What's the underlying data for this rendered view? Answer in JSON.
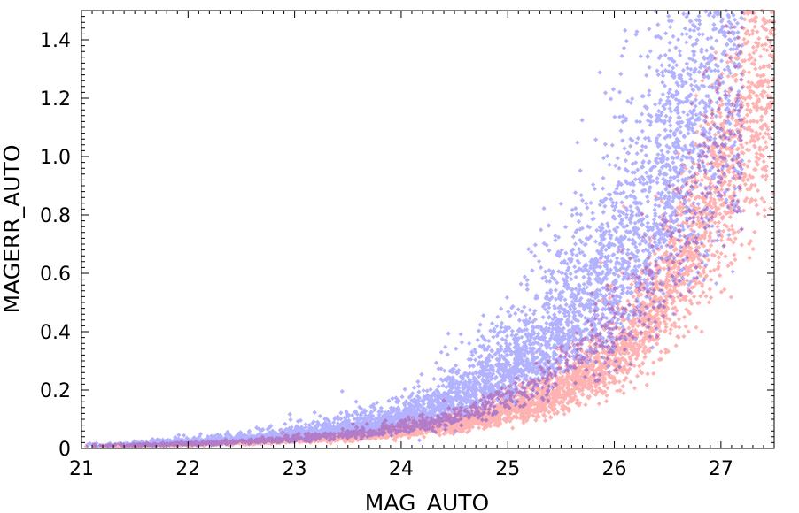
{
  "chart_data": {
    "type": "scatter",
    "title": "",
    "xlabel": "MAG_AUTO",
    "ylabel": "MAGERR_AUTO",
    "xlim": [
      21,
      27.5
    ],
    "ylim": [
      0,
      1.5
    ],
    "x_ticks": [
      "21",
      "22",
      "23",
      "24",
      "25",
      "26",
      "27"
    ],
    "y_ticks": [
      "0",
      "0.2",
      "0.4",
      "0.6",
      "0.8",
      "1.0",
      "1.2",
      "1.4"
    ],
    "grid": false,
    "legend": "none",
    "series": [
      {
        "color": "#0000ff",
        "opacity": 0.3,
        "marker": "diamond",
        "trend": "magerr ≈ 0.04·exp(0.86·(mag−23)), wide scatter, extends to ~1.5 by mag 27",
        "x_range": [
          21,
          27.2
        ],
        "points": [
          [
            21.0,
            0.01
          ],
          [
            21.5,
            0.014
          ],
          [
            22.0,
            0.02
          ],
          [
            22.5,
            0.03
          ],
          [
            23.0,
            0.045
          ],
          [
            23.5,
            0.07
          ],
          [
            24.0,
            0.1
          ],
          [
            24.5,
            0.16
          ],
          [
            25.0,
            0.26
          ],
          [
            25.5,
            0.42
          ],
          [
            26.0,
            0.6
          ],
          [
            26.5,
            0.95
          ],
          [
            27.0,
            1.4
          ]
        ]
      },
      {
        "color": "#ff0000",
        "opacity": 0.3,
        "marker": "diamond",
        "trend": "magerr ≈ 0.025·exp(0.72·(mag−23)), tighter below blue, extends to ~1.4 by mag 27.5",
        "x_range": [
          21,
          27.5
        ],
        "points": [
          [
            21.0,
            0.008
          ],
          [
            21.5,
            0.011
          ],
          [
            22.0,
            0.015
          ],
          [
            22.5,
            0.02
          ],
          [
            23.0,
            0.03
          ],
          [
            23.5,
            0.04
          ],
          [
            24.0,
            0.06
          ],
          [
            24.5,
            0.085
          ],
          [
            25.0,
            0.13
          ],
          [
            25.5,
            0.2
          ],
          [
            26.0,
            0.33
          ],
          [
            26.5,
            0.55
          ],
          [
            27.0,
            0.95
          ],
          [
            27.5,
            1.4
          ]
        ]
      }
    ]
  }
}
